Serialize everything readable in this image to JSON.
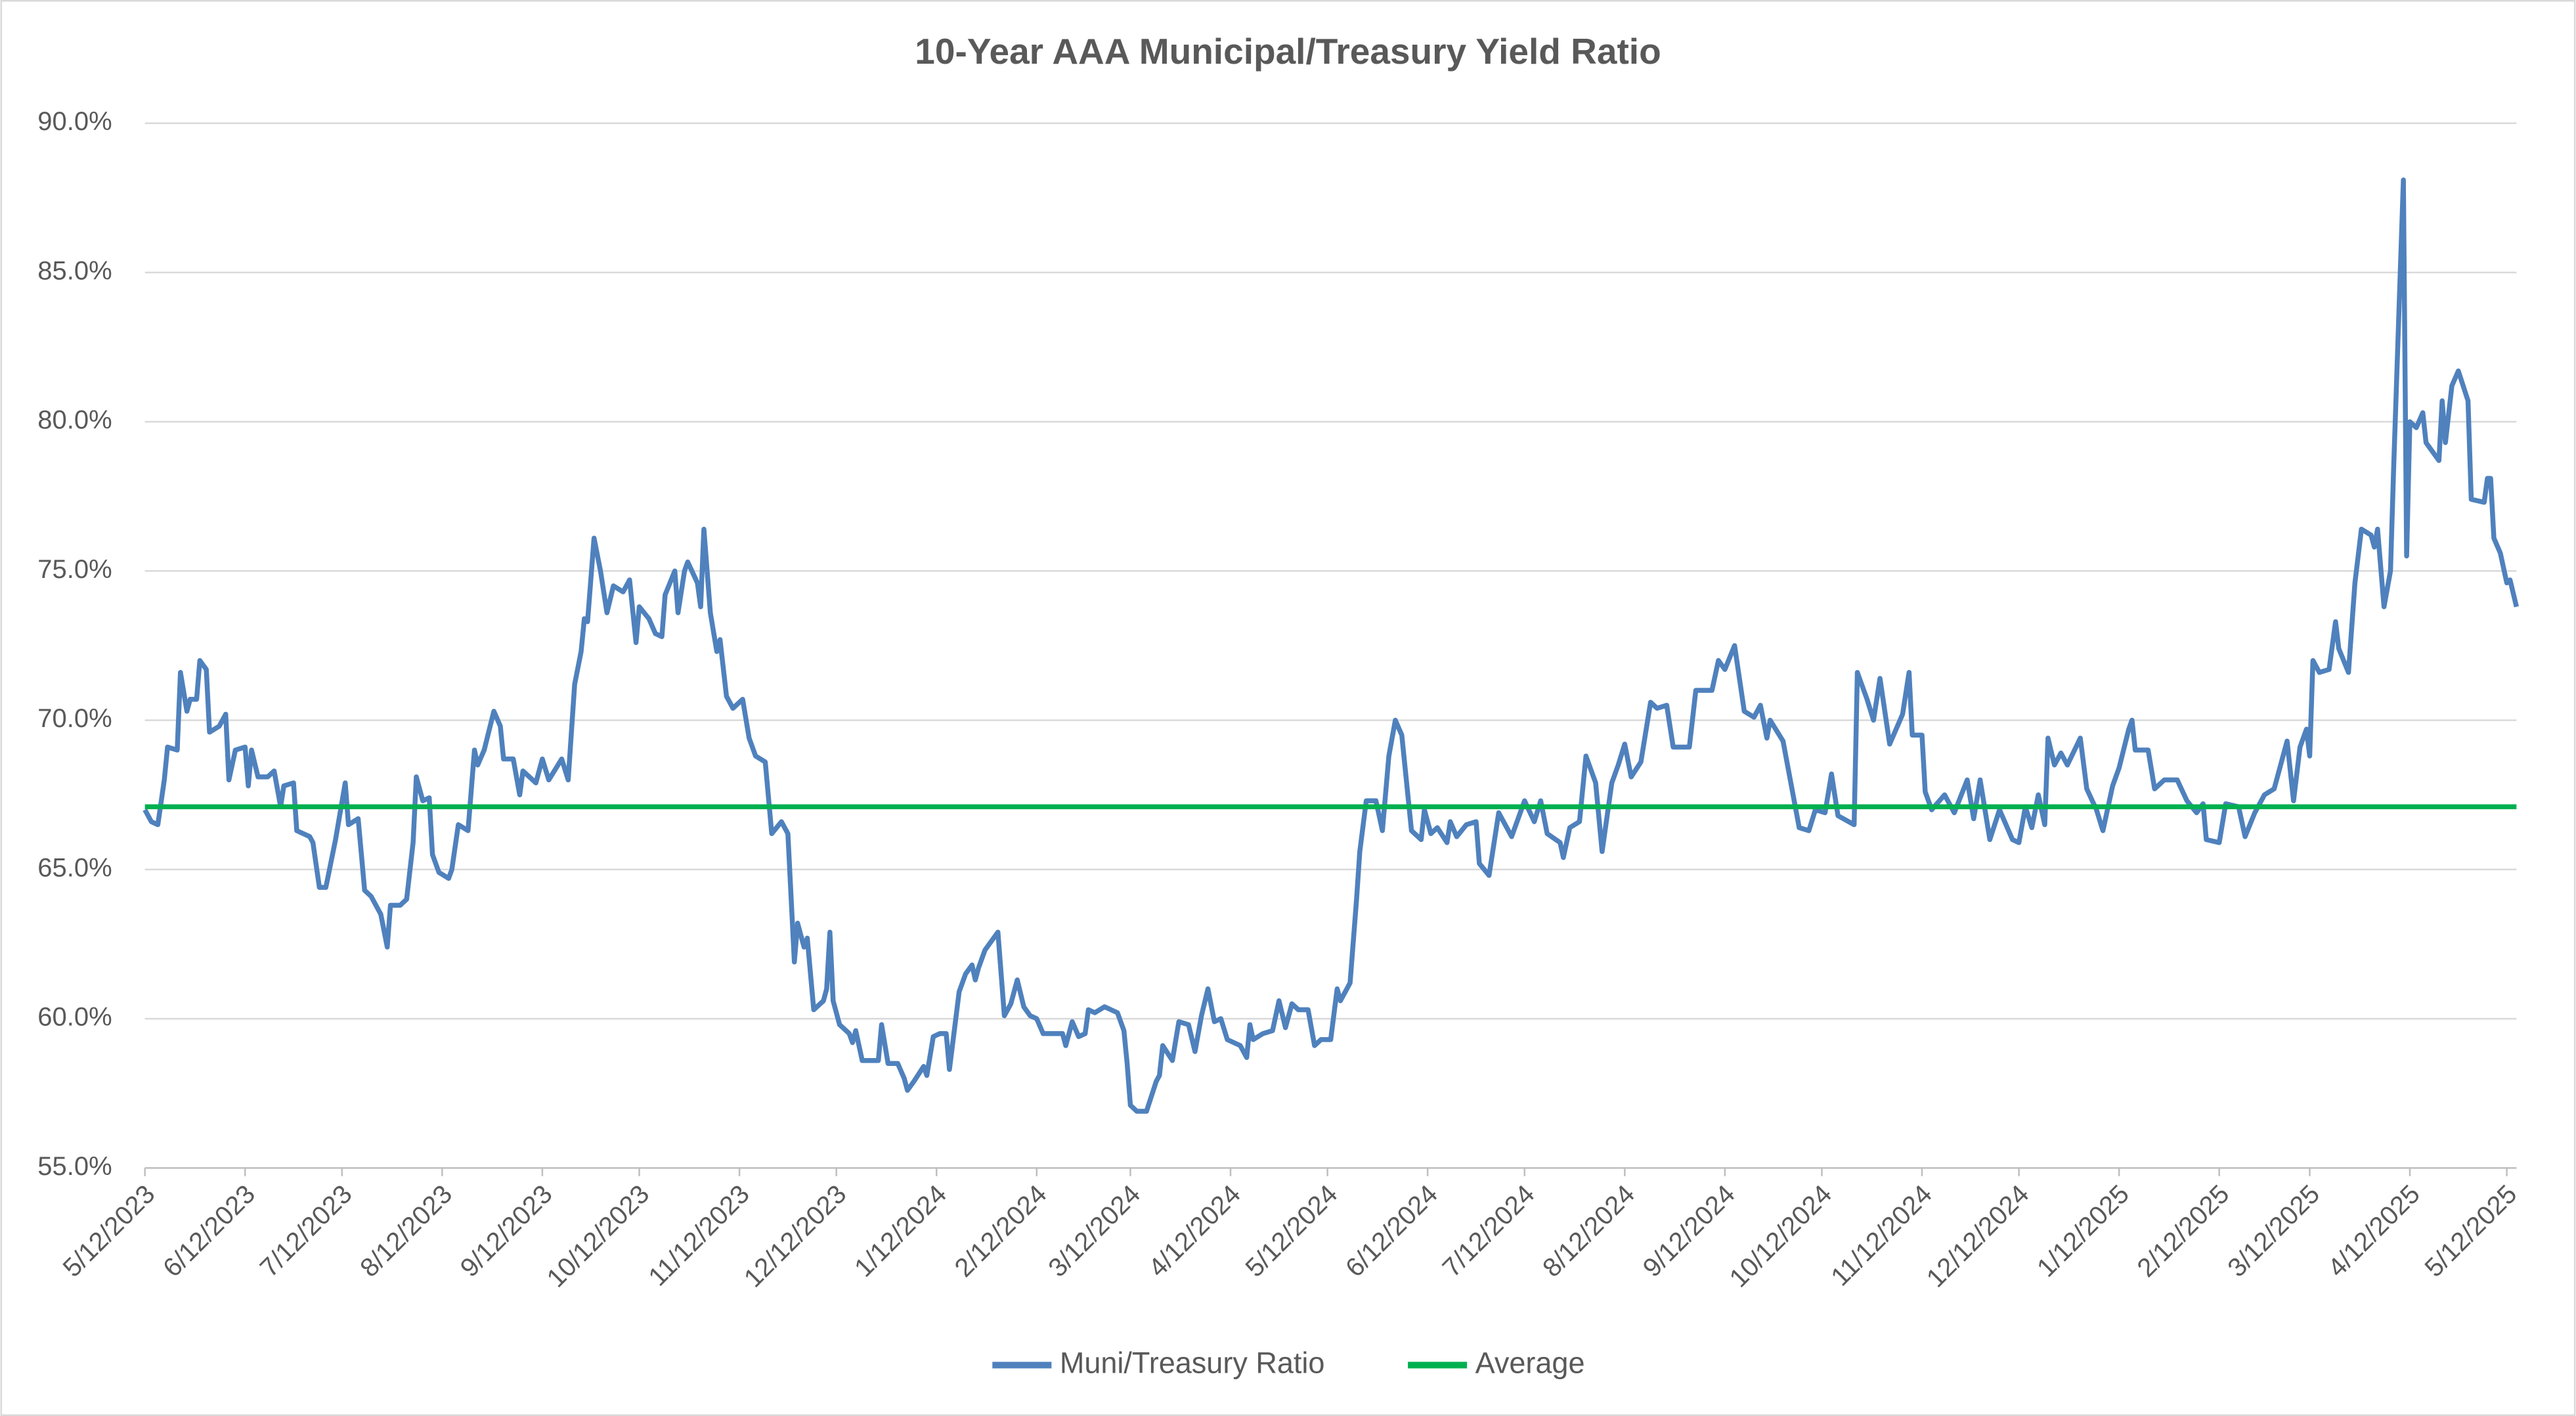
{
  "chart_data": {
    "type": "line",
    "title": "10-Year AAA Municipal/Treasury Yield Ratio",
    "x": [
      "5/12/2023",
      "5/14/2023",
      "5/16/2023",
      "5/18/2023",
      "5/19/2023",
      "5/22/2023",
      "5/23/2023",
      "5/25/2023",
      "5/26/2023",
      "5/28/2023",
      "5/29/2023",
      "5/31/2023",
      "6/1/2023",
      "6/4/2023",
      "6/6/2023",
      "6/7/2023",
      "6/9/2023",
      "6/12/2023",
      "6/13/2023",
      "6/14/2023",
      "6/16/2023",
      "6/19/2023",
      "6/21/2023",
      "6/23/2023",
      "6/24/2023",
      "6/27/2023",
      "6/28/2023",
      "7/2/2023",
      "7/3/2023",
      "7/5/2023",
      "7/7/2023",
      "7/10/2023",
      "7/13/2023",
      "7/14/2023",
      "7/17/2023",
      "7/19/2023",
      "7/21/2023",
      "7/24/2023",
      "7/26/2023",
      "7/27/2023",
      "7/30/2023",
      "8/1/2023",
      "8/3/2023",
      "8/4/2023",
      "8/6/2023",
      "8/8/2023",
      "8/9/2023",
      "8/11/2023",
      "8/14/2023",
      "8/15/2023",
      "8/17/2023",
      "8/20/2023",
      "8/22/2023",
      "8/23/2023",
      "8/25/2023",
      "8/28/2023",
      "8/30/2023",
      "8/31/2023",
      "9/3/2023",
      "9/5/2023",
      "9/6/2023",
      "9/10/2023",
      "9/12/2023",
      "9/14/2023",
      "9/18/2023",
      "9/20/2023",
      "9/22/2023",
      "9/24/2023",
      "9/25/2023",
      "9/26/2023",
      "9/28/2023",
      "9/30/2023",
      "10/2/2023",
      "10/4/2023",
      "10/7/2023",
      "10/9/2023",
      "10/11/2023",
      "10/12/2023",
      "10/15/2023",
      "10/17/2023",
      "10/19/2023",
      "10/20/2023",
      "10/23/2023",
      "10/24/2023",
      "10/26/2023",
      "10/27/2023",
      "10/30/2023",
      "10/31/2023",
      "11/1/2023",
      "11/3/2023",
      "11/5/2023",
      "11/6/2023",
      "11/8/2023",
      "11/10/2023",
      "11/13/2023",
      "11/15/2023",
      "11/17/2023",
      "11/20/2023",
      "11/22/2023",
      "11/25/2023",
      "11/27/2023",
      "11/29/2023",
      "11/30/2023",
      "12/2/2023",
      "12/3/2023",
      "12/5/2023",
      "12/8/2023",
      "12/9/2023",
      "12/10/2023",
      "12/11/2023",
      "12/13/2023",
      "12/16/2023",
      "12/17/2023",
      "12/18/2023",
      "12/20/2023",
      "12/22/2023",
      "12/25/2023",
      "12/26/2023",
      "12/28/2023",
      "12/31/2023",
      "1/2/2024",
      "1/3/2024",
      "1/5/2024",
      "1/8/2024",
      "1/9/2024",
      "1/11/2024",
      "1/13/2024",
      "1/15/2024",
      "1/16/2024",
      "1/19/2024",
      "1/21/2024",
      "1/23/2024",
      "1/24/2024",
      "1/25/2024",
      "1/27/2024",
      "1/31/2024",
      "2/2/2024",
      "2/4/2024",
      "2/6/2024",
      "2/8/2024",
      "2/10/2024",
      "2/12/2024",
      "2/14/2024",
      "2/16/2024",
      "2/20/2024",
      "2/21/2024",
      "2/23/2024",
      "2/25/2024",
      "2/27/2024",
      "2/28/2024",
      "3/1/2024",
      "3/4/2024",
      "3/8/2024",
      "3/10/2024",
      "3/11/2024",
      "3/12/2024",
      "3/14/2024",
      "3/17/2024",
      "3/20/2024",
      "3/21/2024",
      "3/22/2024",
      "3/25/2024",
      "3/27/2024",
      "3/30/2024",
      "4/1/2024",
      "4/3/2024",
      "4/5/2024",
      "4/7/2024",
      "4/9/2024",
      "4/11/2024",
      "4/15/2024",
      "4/17/2024",
      "4/18/2024",
      "4/19/2024",
      "4/22/2024",
      "4/25/2024",
      "4/27/2024",
      "4/29/2024",
      "5/1/2024",
      "5/3/2024",
      "5/6/2024",
      "5/8/2024",
      "5/10/2024",
      "5/13/2024",
      "5/15/2024",
      "5/16/2024",
      "5/19/2024",
      "5/21/2024",
      "5/22/2024",
      "5/24/2024",
      "5/27/2024",
      "5/29/2024",
      "5/31/2024",
      "6/2/2024",
      "6/4/2024",
      "6/7/2024",
      "6/10/2024",
      "6/11/2024",
      "6/13/2024",
      "6/15/2024",
      "6/18/2024",
      "6/19/2024",
      "6/21/2024",
      "6/24/2024",
      "6/27/2024",
      "6/28/2024",
      "7/1/2024",
      "7/4/2024",
      "7/8/2024",
      "7/12/2024",
      "7/15/2024",
      "7/17/2024",
      "7/19/2024",
      "7/23/2024",
      "7/24/2024",
      "7/26/2024",
      "7/29/2024",
      "7/31/2024",
      "8/3/2024",
      "8/5/2024",
      "8/8/2024",
      "8/10/2024",
      "8/12/2024",
      "8/14/2024",
      "8/17/2024",
      "8/20/2024",
      "8/22/2024",
      "8/25/2024",
      "8/27/2024",
      "9/1/2024",
      "9/3/2024",
      "9/8/2024",
      "9/10/2024",
      "9/12/2024",
      "9/15/2024",
      "9/18/2024",
      "9/21/2024",
      "9/23/2024",
      "9/25/2024",
      "9/26/2024",
      "9/30/2024",
      "10/5/2024",
      "10/8/2024",
      "10/10/2024",
      "10/13/2024",
      "10/15/2024",
      "10/17/2024",
      "10/22/2024",
      "10/23/2024",
      "10/26/2024",
      "10/28/2024",
      "10/30/2024",
      "11/2/2024",
      "11/6/2024",
      "11/8/2024",
      "11/9/2024",
      "11/12/2024",
      "11/13/2024",
      "11/15/2024",
      "11/19/2024",
      "11/22/2024",
      "11/26/2024",
      "11/28/2024",
      "11/30/2024",
      "12/3/2024",
      "12/6/2024",
      "12/10/2024",
      "12/12/2024",
      "12/14/2024",
      "12/16/2024",
      "12/18/2024",
      "12/20/2024",
      "12/21/2024",
      "12/23/2024",
      "12/25/2024",
      "12/27/2024",
      "12/31/2024",
      "1/2/2025",
      "1/5/2025",
      "1/7/2025",
      "1/10/2025",
      "1/12/2025",
      "1/15/2025",
      "1/16/2025",
      "1/17/2025",
      "1/21/2025",
      "1/23/2025",
      "1/26/2025",
      "1/30/2025",
      "2/2/2025",
      "2/5/2025",
      "2/7/2025",
      "2/8/2025",
      "2/12/2025",
      "2/14/2025",
      "2/18/2025",
      "2/20/2025",
      "2/23/2025",
      "2/26/2025",
      "3/1/2025",
      "3/3/2025",
      "3/5/2025",
      "3/7/2025",
      "3/9/2025",
      "3/11/2025",
      "3/12/2025",
      "3/13/2025",
      "3/15/2025",
      "3/18/2025",
      "3/20/2025",
      "3/21/2025",
      "3/24/2025",
      "3/26/2025",
      "3/28/2025",
      "3/31/2025",
      "4/1/2025",
      "4/2/2025",
      "4/4/2025",
      "4/6/2025",
      "4/7/2025",
      "4/10/2025",
      "4/11/2025",
      "4/12/2025",
      "4/14/2025",
      "4/16/2025",
      "4/17/2025",
      "4/19/2025",
      "4/21/2025",
      "4/22/2025",
      "4/23/2025",
      "4/25/2025",
      "4/27/2025",
      "4/30/2025",
      "5/1/2025",
      "5/5/2025",
      "5/6/2025",
      "5/7/2025",
      "5/8/2025",
      "5/10/2025",
      "5/12/2025",
      "5/13/2025",
      "5/15/2025"
    ],
    "series": [
      {
        "name": "Muni/Treasury Ratio",
        "color": "#4f81bd",
        "values": [
          67.0,
          66.6,
          66.5,
          68.0,
          69.1,
          69.0,
          71.6,
          70.3,
          70.7,
          70.7,
          72.0,
          71.7,
          69.6,
          69.8,
          70.2,
          68.0,
          69.0,
          69.1,
          67.8,
          69.0,
          68.1,
          68.1,
          68.3,
          67.1,
          67.8,
          67.9,
          66.3,
          66.1,
          65.9,
          64.4,
          64.4,
          66.0,
          67.9,
          66.5,
          66.7,
          64.3,
          64.1,
          63.5,
          62.4,
          63.8,
          63.8,
          64.0,
          65.9,
          68.1,
          67.3,
          67.4,
          65.5,
          64.9,
          64.7,
          65.0,
          66.5,
          66.3,
          69.0,
          68.5,
          69.0,
          70.3,
          69.8,
          68.7,
          68.7,
          67.5,
          68.3,
          67.9,
          68.7,
          68.0,
          68.7,
          68.0,
          71.2,
          72.3,
          73.4,
          73.3,
          76.1,
          75.0,
          73.6,
          74.5,
          74.3,
          74.7,
          72.6,
          73.8,
          73.4,
          72.9,
          72.8,
          74.2,
          75.0,
          73.6,
          75.0,
          75.3,
          74.6,
          73.8,
          76.4,
          73.6,
          72.3,
          72.7,
          70.8,
          70.4,
          70.7,
          69.4,
          68.8,
          68.6,
          66.2,
          66.6,
          66.2,
          61.9,
          63.2,
          62.4,
          62.7,
          60.3,
          60.6,
          61.0,
          62.9,
          60.6,
          59.8,
          59.5,
          59.2,
          59.6,
          58.6,
          58.6,
          58.6,
          59.8,
          58.5,
          58.5,
          58.0,
          57.6,
          57.9,
          58.4,
          58.1,
          59.4,
          59.5,
          59.5,
          58.3,
          60.9,
          61.5,
          61.8,
          61.3,
          61.7,
          62.3,
          62.9,
          60.1,
          60.5,
          61.3,
          60.4,
          60.1,
          60.0,
          59.5,
          59.5,
          59.5,
          59.1,
          59.9,
          59.4,
          59.5,
          60.3,
          60.2,
          60.4,
          60.2,
          59.6,
          58.5,
          57.1,
          56.9,
          56.9,
          57.9,
          58.1,
          59.1,
          58.6,
          59.9,
          59.8,
          58.9,
          60.1,
          61.0,
          59.9,
          60.0,
          59.3,
          59.1,
          58.7,
          59.8,
          59.3,
          59.5,
          59.6,
          60.6,
          59.7,
          60.5,
          60.3,
          60.3,
          59.1,
          59.3,
          59.3,
          61.0,
          60.6,
          61.2,
          64.0,
          65.6,
          67.3,
          67.3,
          66.3,
          68.8,
          70.0,
          69.5,
          66.3,
          66.0,
          67.0,
          66.2,
          66.4,
          65.9,
          66.6,
          66.1,
          66.5,
          66.6,
          65.2,
          64.8,
          66.9,
          66.1,
          67.3,
          66.6,
          67.3,
          66.2,
          65.9,
          65.4,
          66.4,
          66.6,
          68.8,
          67.9,
          65.6,
          67.9,
          68.5,
          69.2,
          68.1,
          68.6,
          70.6,
          70.4,
          70.5,
          69.1,
          69.1,
          71.0,
          71.0,
          72.0,
          71.7,
          72.5,
          70.3,
          70.1,
          70.5,
          69.4,
          70.0,
          69.3,
          66.4,
          66.3,
          67.0,
          66.9,
          68.2,
          66.8,
          66.5,
          71.6,
          70.7,
          70.0,
          71.4,
          69.2,
          70.2,
          71.6,
          69.5,
          69.5,
          67.6,
          67.0,
          67.5,
          66.9,
          68.0,
          66.7,
          68.0,
          66.0,
          67.0,
          66.0,
          65.9,
          67.1,
          66.4,
          67.5,
          66.5,
          69.4,
          68.5,
          68.9,
          68.5,
          69.4,
          67.7,
          67.0,
          66.3,
          67.8,
          68.4,
          69.7,
          70.0,
          69.0,
          69.0,
          67.7,
          68.0,
          68.0,
          67.3,
          66.9,
          67.2,
          66.0,
          65.9,
          67.2,
          67.1,
          66.1,
          66.9,
          67.5,
          67.7,
          68.5,
          69.3,
          67.3,
          69.1,
          69.7,
          68.8,
          72.0,
          71.6,
          71.7,
          73.3,
          72.4,
          71.6,
          74.6,
          76.4,
          76.2,
          75.8,
          76.4,
          73.8,
          75.0,
          78.5,
          88.1,
          75.5,
          80.0,
          79.8,
          80.3,
          79.3,
          79.0,
          78.7,
          80.7,
          79.3,
          81.2,
          81.7,
          80.7,
          77.4,
          77.3,
          78.1,
          78.1,
          76.1,
          75.6,
          74.6,
          74.7,
          73.8
        ]
      },
      {
        "name": "Average",
        "color": "#00b050",
        "x": [
          "5/12/2023",
          "5/15/2025"
        ],
        "values": [
          67.1,
          67.1
        ]
      }
    ],
    "xlim": [
      "5/12/2023",
      "5/15/2025"
    ],
    "xticks": [
      "5/12/2023",
      "6/12/2023",
      "7/12/2023",
      "8/12/2023",
      "9/12/2023",
      "10/12/2023",
      "11/12/2023",
      "12/12/2023",
      "1/12/2024",
      "2/12/2024",
      "3/12/2024",
      "4/12/2024",
      "5/12/2024",
      "6/12/2024",
      "7/12/2024",
      "8/12/2024",
      "9/12/2024",
      "10/12/2024",
      "11/12/2024",
      "12/12/2024",
      "1/12/2025",
      "2/12/2025",
      "3/12/2025",
      "4/12/2025",
      "5/12/2025"
    ],
    "ylim": [
      55,
      90
    ],
    "yticks": [
      {
        "value": 55,
        "label": "55.0%"
      },
      {
        "value": 60,
        "label": "60.0%"
      },
      {
        "value": 65,
        "label": "65.0%"
      },
      {
        "value": 70,
        "label": "70.0%"
      },
      {
        "value": 75,
        "label": "75.0%"
      },
      {
        "value": 80,
        "label": "80.0%"
      },
      {
        "value": 85,
        "label": "85.0%"
      },
      {
        "value": 90,
        "label": "90.0%"
      }
    ],
    "grid": true,
    "legend": "bottom"
  }
}
